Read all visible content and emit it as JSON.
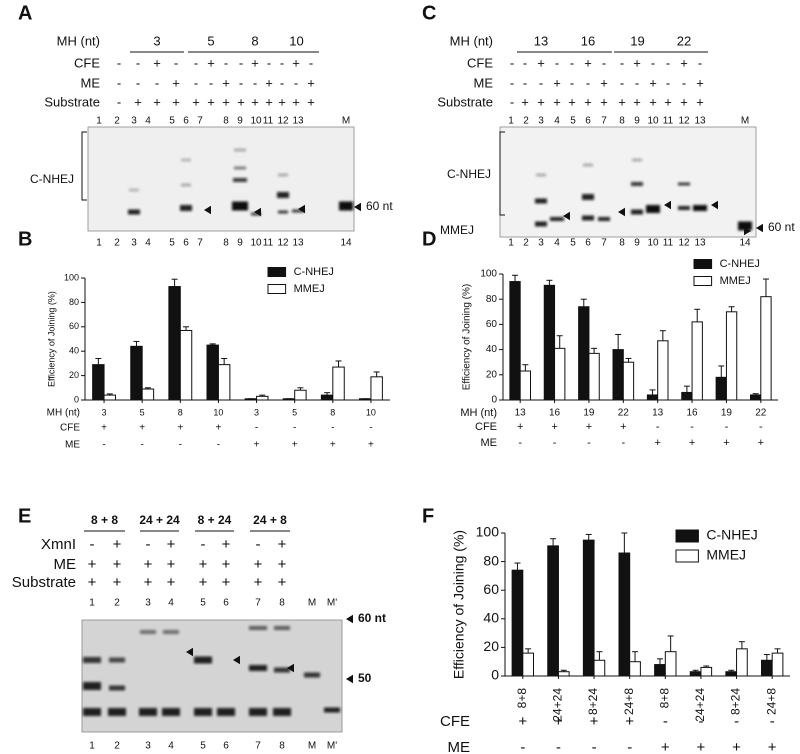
{
  "chart_data": [
    {
      "type": "bar",
      "panel": "B",
      "ylabel": "Efficiency of Joining (%)",
      "category_label": "MH (nt)",
      "categories": [
        "3",
        "5",
        "8",
        "10",
        "3",
        "5",
        "8",
        "10"
      ],
      "rows": [
        {
          "label": "CFE",
          "signs": [
            "+",
            "+",
            "+",
            "+",
            "-",
            "-",
            "-",
            "-"
          ]
        },
        {
          "label": "ME",
          "signs": [
            "-",
            "-",
            "-",
            "-",
            "+",
            "+",
            "+",
            "+"
          ]
        }
      ],
      "series": [
        {
          "name": "C-NHEJ",
          "color": "#111111",
          "values": [
            29,
            44,
            93,
            45,
            1,
            1,
            4,
            1
          ],
          "errors": [
            5,
            4,
            6,
            1,
            0,
            0,
            2,
            0
          ]
        },
        {
          "name": "MMEJ",
          "color": "#ffffff",
          "values": [
            4,
            9,
            57,
            29,
            3,
            8,
            27,
            19
          ],
          "errors": [
            1,
            1,
            3,
            5,
            1,
            2,
            5,
            4
          ]
        }
      ],
      "ylim": [
        0,
        100
      ],
      "yticks": [
        0,
        20,
        40,
        60,
        80,
        100
      ],
      "legend": "upper right"
    },
    {
      "type": "bar",
      "panel": "D",
      "ylabel": "Efficiency of Joining (%)",
      "category_label": "MH (nt)",
      "categories": [
        "13",
        "16",
        "19",
        "22",
        "13",
        "16",
        "19",
        "22"
      ],
      "rows": [
        {
          "label": "CFE",
          "signs": [
            "+",
            "+",
            "+",
            "+",
            "-",
            "-",
            "-",
            "-"
          ]
        },
        {
          "label": "ME",
          "signs": [
            "-",
            "-",
            "-",
            "-",
            "+",
            "+",
            "+",
            "+"
          ]
        }
      ],
      "series": [
        {
          "name": "C-NHEJ",
          "color": "#111111",
          "values": [
            94,
            91,
            74,
            40,
            4,
            6,
            18,
            4
          ],
          "errors": [
            5,
            4,
            6,
            12,
            4,
            5,
            9,
            1
          ]
        },
        {
          "name": "MMEJ",
          "color": "#ffffff",
          "values": [
            23,
            41,
            37,
            30,
            47,
            62,
            70,
            82
          ],
          "errors": [
            5,
            10,
            4,
            3,
            8,
            10,
            4,
            14
          ]
        }
      ],
      "ylim": [
        0,
        100
      ],
      "yticks": [
        0,
        20,
        40,
        60,
        80,
        100
      ],
      "legend": "upper right"
    },
    {
      "type": "bar",
      "panel": "F",
      "ylabel": "Efficiency of Joining (%)",
      "categories": [
        "8+8",
        "24+24",
        "8+24",
        "24+8",
        "8+8",
        "24+24",
        "8+24",
        "24+8"
      ],
      "rows": [
        {
          "label": "CFE",
          "signs": [
            "+",
            "+",
            "+",
            "+",
            "-",
            "-",
            "-",
            "-"
          ]
        },
        {
          "label": "ME",
          "signs": [
            "-",
            "-",
            "-",
            "-",
            "+",
            "+",
            "+",
            "+"
          ]
        }
      ],
      "series": [
        {
          "name": "C-NHEJ",
          "color": "#111111",
          "values": [
            74,
            91,
            95,
            86,
            8,
            3,
            3,
            11
          ],
          "errors": [
            5,
            5,
            4,
            14,
            4,
            1,
            1,
            4
          ]
        },
        {
          "name": "MMEJ",
          "color": "#ffffff",
          "values": [
            16,
            3,
            11,
            10,
            17,
            6,
            19,
            16
          ],
          "errors": [
            3,
            1,
            6,
            7,
            11,
            1,
            5,
            3
          ]
        }
      ],
      "ylim": [
        0,
        100
      ],
      "yticks": [
        0,
        20,
        40,
        60,
        80,
        100
      ],
      "legend": "upper right"
    }
  ],
  "gels": [
    {
      "panel": "A",
      "header_label": "MH (nt)",
      "groups": [
        "3",
        "5",
        "8",
        "10"
      ],
      "rows": [
        {
          "label": "CFE",
          "signs": [
            "-",
            "-",
            "+",
            "-",
            "-",
            "+",
            "-",
            "-",
            "+",
            "-",
            "-",
            "+",
            "-"
          ]
        },
        {
          "label": "ME",
          "signs": [
            "-",
            "-",
            "-",
            "+",
            "-",
            "-",
            "+",
            "-",
            "-",
            "+",
            "-",
            "-",
            "+"
          ]
        },
        {
          "label": "Substrate",
          "signs": [
            "-",
            "+",
            "+",
            "+",
            "+",
            "+",
            "+",
            "+",
            "+",
            "+",
            "+",
            "+",
            "+"
          ]
        }
      ],
      "lanes_top": [
        "1",
        "2",
        "3",
        "4",
        "5",
        "6",
        "7",
        "8",
        "9",
        "10",
        "11",
        "12",
        "13",
        "M"
      ],
      "lanes_bottom": [
        "1",
        "2",
        "3",
        "4",
        "5",
        "6",
        "7",
        "8",
        "9",
        "10",
        "11",
        "12",
        "13",
        "14"
      ],
      "labels": [
        "C-NHEJ",
        "60 nt"
      ]
    },
    {
      "panel": "C",
      "header_label": "MH (nt)",
      "groups": [
        "13",
        "16",
        "19",
        "22"
      ],
      "rows": [
        {
          "label": "CFE",
          "signs": [
            "-",
            "-",
            "+",
            "-",
            "-",
            "+",
            "-",
            "-",
            "+",
            "-",
            "-",
            "+",
            "-"
          ]
        },
        {
          "label": "ME",
          "signs": [
            "-",
            "-",
            "-",
            "+",
            "-",
            "-",
            "+",
            "-",
            "-",
            "+",
            "-",
            "-",
            "+"
          ]
        },
        {
          "label": "Substrate",
          "signs": [
            "-",
            "+",
            "+",
            "+",
            "+",
            "+",
            "+",
            "+",
            "+",
            "+",
            "+",
            "+",
            "+"
          ]
        }
      ],
      "lanes_top": [
        "1",
        "2",
        "3",
        "4",
        "5",
        "6",
        "7",
        "8",
        "9",
        "10",
        "11",
        "12",
        "13",
        "M"
      ],
      "lanes_bottom": [
        "1",
        "2",
        "3",
        "4",
        "5",
        "6",
        "7",
        "8",
        "9",
        "10",
        "11",
        "12",
        "13",
        "14"
      ],
      "labels": [
        "C-NHEJ",
        "MMEJ",
        "60 nt"
      ]
    },
    {
      "panel": "E",
      "groups": [
        "8 + 8",
        "24 + 24",
        "8 + 24",
        "24 + 8"
      ],
      "rows": [
        {
          "label": "XmnI",
          "signs": [
            "-",
            "+",
            "-",
            "+",
            "-",
            "+",
            "-",
            "+"
          ]
        },
        {
          "label": "ME",
          "signs": [
            "+",
            "+",
            "+",
            "+",
            "+",
            "+",
            "+",
            "+"
          ]
        },
        {
          "label": "Substrate",
          "signs": [
            "+",
            "+",
            "+",
            "+",
            "+",
            "+",
            "+",
            "+"
          ]
        }
      ],
      "lanes_top": [
        "1",
        "2",
        "3",
        "4",
        "5",
        "6",
        "7",
        "8",
        "M",
        "M'"
      ],
      "lanes_bottom": [
        "1",
        "2",
        "3",
        "4",
        "5",
        "6",
        "7",
        "8",
        "M",
        "M'"
      ],
      "labels": [
        "60 nt",
        "50"
      ]
    }
  ]
}
